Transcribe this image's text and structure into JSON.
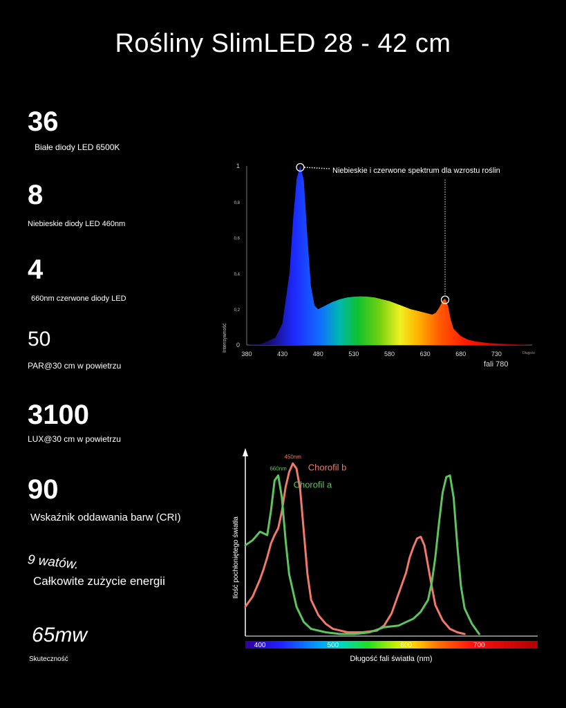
{
  "title": "Rośliny SlimLED 28 - 42 cm",
  "stats": [
    {
      "value": "36",
      "label": "Białe diody LED 6500K"
    },
    {
      "value": "8",
      "label": "Niebieskie diody LED 460nm"
    },
    {
      "value": "4",
      "label": "660nm czerwone diody LED"
    },
    {
      "value": "50",
      "label": "PAR@30 cm w powietrzu"
    },
    {
      "value": "3100",
      "label": "LUX@30 cm w powietrzu"
    },
    {
      "value": "90",
      "label": "Wskaźnik oddawania barw (CRI)"
    },
    {
      "value": "9 watów.",
      "label": "Całkowite zużycie energii"
    },
    {
      "value": "65mw",
      "label": "Skuteczność"
    }
  ],
  "chart_data": [
    {
      "type": "area",
      "title": "",
      "ylabel": "Intensywność",
      "xlabel_small": "Długość",
      "xlabel_tail": "fali 780",
      "x_ticks": [
        380,
        430,
        480,
        530,
        580,
        630,
        680,
        730
      ],
      "y_ticks": [
        "0",
        "0,2",
        "0,4",
        "0,6",
        "0,8",
        "1"
      ],
      "xlim": [
        380,
        780
      ],
      "ylim": [
        0,
        1
      ],
      "annotation": "Niebieskie i czerwone spektrum dla wzrostu roślin",
      "markers": [
        {
          "x": 455,
          "y": 1.0
        },
        {
          "x": 658,
          "y": 0.26
        }
      ],
      "series": [
        {
          "x": [
            380,
            400,
            420,
            430,
            440,
            445,
            450,
            455,
            460,
            465,
            470,
            475,
            480,
            490,
            500,
            510,
            520,
            530,
            540,
            550,
            560,
            570,
            580,
            590,
            600,
            610,
            620,
            630,
            640,
            645,
            650,
            655,
            658,
            662,
            666,
            670,
            680,
            690,
            700,
            720,
            740,
            760,
            780
          ],
          "y": [
            0.0,
            0.005,
            0.04,
            0.12,
            0.4,
            0.7,
            0.93,
            1.0,
            0.92,
            0.6,
            0.33,
            0.22,
            0.2,
            0.22,
            0.24,
            0.255,
            0.265,
            0.27,
            0.272,
            0.27,
            0.265,
            0.255,
            0.245,
            0.23,
            0.215,
            0.2,
            0.19,
            0.18,
            0.17,
            0.18,
            0.21,
            0.25,
            0.26,
            0.22,
            0.14,
            0.09,
            0.05,
            0.03,
            0.02,
            0.01,
            0.006,
            0.003,
            0.0
          ]
        }
      ]
    },
    {
      "type": "line",
      "title": "",
      "xlabel": "Długość fali światła (nm)",
      "ylabel": "Ilość pochłoniętego światła",
      "x_ticks": [
        400,
        500,
        600,
        700
      ],
      "xlim": [
        380,
        780
      ],
      "ylim": [
        0,
        1
      ],
      "series": [
        {
          "name": "Chorofil b",
          "color": "#f07a68",
          "peak_label": "450nm",
          "x": [
            380,
            390,
            400,
            405,
            410,
            415,
            420,
            425,
            430,
            435,
            440,
            445,
            450,
            455,
            460,
            465,
            470,
            480,
            490,
            500,
            520,
            540,
            560,
            570,
            580,
            590,
            600,
            605,
            610,
            615,
            620,
            625,
            630,
            635,
            640,
            650,
            660,
            670,
            680
          ],
          "y": [
            0.16,
            0.22,
            0.32,
            0.38,
            0.45,
            0.53,
            0.58,
            0.62,
            0.72,
            0.86,
            0.95,
            1.0,
            0.97,
            0.85,
            0.6,
            0.35,
            0.2,
            0.11,
            0.06,
            0.03,
            0.01,
            0.01,
            0.02,
            0.05,
            0.12,
            0.24,
            0.36,
            0.45,
            0.51,
            0.56,
            0.57,
            0.52,
            0.4,
            0.28,
            0.17,
            0.08,
            0.03,
            0.01,
            0.0
          ]
        },
        {
          "name": "Chorofil a",
          "color": "#5ec45e",
          "peak_label": "660nm",
          "x": [
            380,
            390,
            400,
            410,
            415,
            420,
            425,
            430,
            435,
            440,
            450,
            460,
            470,
            490,
            510,
            530,
            550,
            570,
            590,
            600,
            610,
            620,
            630,
            635,
            640,
            645,
            650,
            655,
            660,
            665,
            670,
            675,
            680,
            690,
            700
          ],
          "y": [
            0.52,
            0.55,
            0.6,
            0.58,
            0.72,
            0.9,
            0.93,
            0.8,
            0.55,
            0.35,
            0.16,
            0.07,
            0.03,
            0.01,
            0.0,
            0.0,
            0.01,
            0.04,
            0.05,
            0.07,
            0.09,
            0.13,
            0.2,
            0.3,
            0.45,
            0.65,
            0.83,
            0.92,
            0.93,
            0.8,
            0.52,
            0.28,
            0.15,
            0.06,
            0.0
          ]
        }
      ]
    }
  ]
}
